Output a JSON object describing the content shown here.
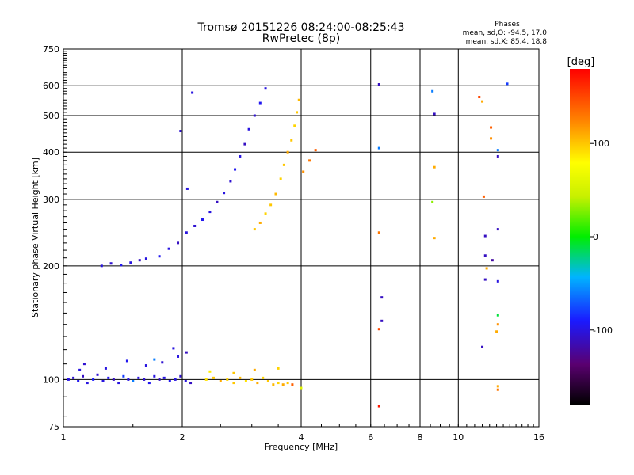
{
  "chart_data": {
    "type": "scatter",
    "title": "Tromsø 20151226 08:24:00-08:25:43",
    "subtitle": "RwPretec (8p)",
    "phases_header": "Phases",
    "phases_o": "mean, sd,O: -94.5, 17.0",
    "phases_x": "mean, sd,X: 85.4, 18.8",
    "xlabel": "Frequency [MHz]",
    "ylabel": "Stationary phase Virtual Height [km]",
    "x_scale": "log",
    "y_scale": "log",
    "xlim": [
      1,
      16
    ],
    "ylim": [
      75,
      750
    ],
    "x_ticks": [
      1,
      2,
      4,
      6,
      8,
      10,
      16
    ],
    "x_tick_labels": [
      "1",
      "2",
      "4",
      "6",
      "8",
      "10",
      "16"
    ],
    "y_ticks": [
      75,
      100,
      200,
      300,
      400,
      500,
      600,
      750
    ],
    "y_tick_labels": [
      "75",
      "100",
      "200",
      "300",
      "400",
      "500",
      "600",
      "750"
    ],
    "grid": true,
    "colorbar": {
      "label": "[deg]",
      "range": [
        -180,
        180
      ],
      "ticks": [
        100,
        0,
        -100
      ],
      "tick_labels": [
        "100",
        "0",
        "-100"
      ]
    },
    "series": [
      {
        "points": [
          [
            1.03,
            100,
            -100
          ],
          [
            1.06,
            101,
            -105
          ],
          [
            1.09,
            99,
            -95
          ],
          [
            1.12,
            102,
            -110
          ],
          [
            1.15,
            98,
            -100
          ],
          [
            1.19,
            100,
            -90
          ],
          [
            1.22,
            103,
            -105
          ],
          [
            1.26,
            99,
            -100
          ],
          [
            1.3,
            101,
            -95
          ],
          [
            1.34,
            100,
            -110
          ],
          [
            1.38,
            98,
            -100
          ],
          [
            1.42,
            102,
            -80
          ],
          [
            1.46,
            100,
            -100
          ],
          [
            1.5,
            99,
            -60
          ],
          [
            1.55,
            101,
            -100
          ],
          [
            1.6,
            100,
            -105
          ],
          [
            1.65,
            98,
            -95
          ],
          [
            1.7,
            102,
            -100
          ],
          [
            1.75,
            100,
            -110
          ],
          [
            1.8,
            101,
            -100
          ],
          [
            1.86,
            99,
            -95
          ],
          [
            1.92,
            100,
            -100
          ],
          [
            1.98,
            102,
            -105
          ],
          [
            2.04,
            99,
            -100
          ],
          [
            2.1,
            98,
            -110
          ],
          [
            1.13,
            110,
            -105
          ],
          [
            1.28,
            107,
            -100
          ],
          [
            1.45,
            112,
            -95
          ],
          [
            1.62,
            109,
            -100
          ],
          [
            1.78,
            111,
            -105
          ],
          [
            1.95,
            115,
            -100
          ],
          [
            2.05,
            118,
            -110
          ],
          [
            1.1,
            106,
            -100
          ],
          [
            1.7,
            113,
            -60
          ],
          [
            1.9,
            121,
            -100
          ]
        ]
      },
      {
        "points": [
          [
            2.3,
            100,
            90
          ],
          [
            2.4,
            101,
            100
          ],
          [
            2.5,
            99,
            110
          ],
          [
            2.6,
            100,
            95
          ],
          [
            2.7,
            98,
            100
          ],
          [
            2.8,
            101,
            105
          ],
          [
            2.9,
            99,
            90
          ],
          [
            3.0,
            100,
            100
          ],
          [
            3.1,
            98,
            110
          ],
          [
            3.2,
            101,
            95
          ],
          [
            3.3,
            99,
            100
          ],
          [
            3.4,
            97,
            105
          ],
          [
            3.5,
            98,
            95
          ],
          [
            3.6,
            97,
            110
          ],
          [
            3.7,
            98,
            100
          ],
          [
            3.8,
            97,
            140
          ],
          [
            2.35,
            105,
            85
          ],
          [
            2.7,
            104,
            100
          ],
          [
            3.05,
            106,
            110
          ],
          [
            3.5,
            107,
            95
          ],
          [
            4.0,
            95,
            60
          ]
        ]
      },
      {
        "points": [
          [
            1.25,
            200,
            -100
          ],
          [
            1.32,
            203,
            -105
          ],
          [
            1.4,
            201,
            -95
          ],
          [
            1.48,
            204,
            -100
          ],
          [
            1.56,
            207,
            -110
          ],
          [
            1.62,
            209,
            -100
          ],
          [
            1.75,
            212,
            -95
          ],
          [
            1.85,
            222,
            -100
          ],
          [
            1.95,
            230,
            -110
          ],
          [
            2.05,
            245,
            -100
          ],
          [
            2.15,
            255,
            -105
          ],
          [
            2.25,
            265,
            -95
          ],
          [
            2.35,
            278,
            -100
          ],
          [
            2.45,
            295,
            -110
          ],
          [
            2.55,
            312,
            -100
          ],
          [
            2.65,
            335,
            -105
          ],
          [
            2.72,
            360,
            -95
          ],
          [
            2.8,
            390,
            -100
          ],
          [
            2.88,
            420,
            -110
          ],
          [
            2.95,
            460,
            -100
          ],
          [
            3.05,
            500,
            -105
          ],
          [
            3.15,
            540,
            -95
          ],
          [
            3.25,
            590,
            -100
          ],
          [
            2.06,
            320,
            -100
          ],
          [
            2.12,
            575,
            -100
          ],
          [
            1.98,
            455,
            -105
          ]
        ]
      },
      {
        "points": [
          [
            3.05,
            250,
            100
          ],
          [
            3.15,
            260,
            110
          ],
          [
            3.25,
            275,
            95
          ],
          [
            3.35,
            290,
            100
          ],
          [
            3.45,
            310,
            105
          ],
          [
            3.55,
            340,
            95
          ],
          [
            3.62,
            370,
            100
          ],
          [
            3.7,
            400,
            110
          ],
          [
            3.78,
            430,
            100
          ],
          [
            3.85,
            470,
            95
          ],
          [
            3.9,
            510,
            100
          ],
          [
            3.95,
            550,
            105
          ],
          [
            4.05,
            355,
            120
          ],
          [
            4.2,
            380,
            130
          ],
          [
            4.35,
            405,
            140
          ]
        ]
      },
      {
        "points": [
          [
            6.3,
            605,
            -110
          ],
          [
            6.3,
            410,
            -60
          ],
          [
            6.3,
            245,
            130
          ],
          [
            6.4,
            165,
            -110
          ],
          [
            6.4,
            143,
            -110
          ],
          [
            6.3,
            136,
            150
          ],
          [
            6.3,
            85,
            170
          ],
          [
            8.6,
            580,
            -60
          ],
          [
            8.7,
            505,
            -110
          ],
          [
            8.7,
            365,
            110
          ],
          [
            8.6,
            295,
            30
          ],
          [
            8.7,
            237,
            110
          ],
          [
            11.3,
            560,
            150
          ],
          [
            11.5,
            545,
            110
          ],
          [
            12.1,
            465,
            140
          ],
          [
            12.1,
            435,
            120
          ],
          [
            12.6,
            405,
            -60
          ],
          [
            12.6,
            390,
            -110
          ],
          [
            11.6,
            305,
            140
          ],
          [
            11.7,
            240,
            -110
          ],
          [
            12.6,
            250,
            -110
          ],
          [
            11.7,
            213,
            -110
          ],
          [
            12.2,
            207,
            -120
          ],
          [
            11.8,
            197,
            110
          ],
          [
            11.7,
            184,
            -110
          ],
          [
            12.6,
            182,
            -100
          ],
          [
            12.6,
            148,
            -10
          ],
          [
            12.6,
            140,
            120
          ],
          [
            12.5,
            134,
            110
          ],
          [
            11.5,
            122,
            -110
          ],
          [
            12.6,
            96,
            110
          ],
          [
            12.6,
            94,
            130
          ],
          [
            13.3,
            607,
            -80
          ]
        ]
      }
    ]
  }
}
